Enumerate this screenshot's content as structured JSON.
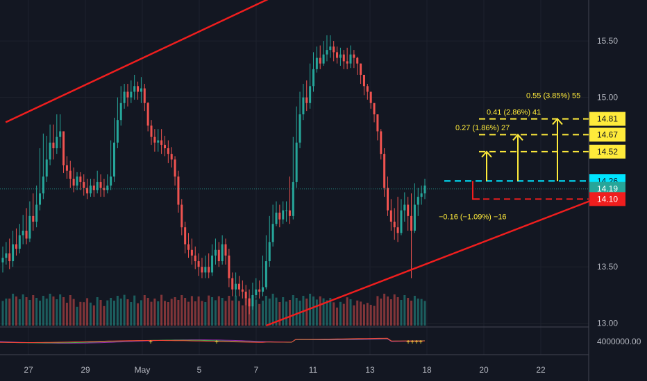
{
  "chart_data": {
    "type": "candlestick",
    "price_axis": {
      "range": [
        12.98,
        15.85
      ],
      "ticks": [
        "15.50",
        "15.00",
        "13.50",
        "13.00"
      ]
    },
    "time_axis": {
      "ticks": [
        {
          "label": "27",
          "day": 0
        },
        {
          "label": "29",
          "day": 2
        },
        {
          "label": "May",
          "day": 4
        },
        {
          "label": "5",
          "day": 6
        },
        {
          "label": "7",
          "day": 8
        },
        {
          "label": "11",
          "day": 10
        },
        {
          "label": "13",
          "day": 12
        },
        {
          "label": "18",
          "day": 14
        },
        {
          "label": "20",
          "day": 16
        },
        {
          "label": "22",
          "day": 18
        }
      ]
    },
    "candle_closes": [
      13.58,
      13.62,
      13.55,
      13.7,
      13.66,
      13.78,
      13.82,
      13.75,
      13.95,
      13.9,
      14.05,
      14.15,
      14.3,
      14.45,
      14.6,
      14.55,
      14.65,
      14.7,
      14.4,
      14.35,
      14.28,
      14.22,
      14.3,
      14.25,
      14.2,
      14.15,
      14.22,
      14.18,
      14.25,
      14.2,
      14.18,
      14.22,
      14.3,
      14.6,
      14.8,
      14.95,
      15.05,
      15.0,
      15.05,
      15.1,
      15.05,
      15.08,
      14.95,
      14.75,
      14.65,
      14.6,
      14.62,
      14.58,
      14.55,
      14.5,
      14.45,
      14.3,
      14.05,
      13.85,
      13.7,
      13.65,
      13.6,
      13.55,
      13.5,
      13.45,
      13.5,
      13.45,
      13.6,
      13.65,
      13.55,
      13.7,
      13.6,
      13.4,
      13.3,
      13.35,
      13.3,
      13.28,
      13.22,
      13.15,
      13.25,
      13.3,
      13.28,
      13.32,
      13.55,
      13.72,
      13.88,
      13.98,
      13.92,
      14.0,
      14.0,
      13.95,
      14.25,
      14.6,
      14.85,
      15.0,
      14.95,
      15.1,
      15.25,
      15.35,
      15.3,
      15.38,
      15.42,
      15.45,
      15.4,
      15.35,
      15.38,
      15.32,
      15.3,
      15.38,
      15.35,
      15.3,
      15.2,
      15.1,
      15.05,
      14.95,
      14.85,
      14.7,
      14.5,
      14.2,
      14.0,
      13.9,
      13.85,
      13.8,
      14.0,
      14.05,
      13.95,
      13.82,
      14.05,
      14.12,
      14.15,
      14.22
    ],
    "candle_highs": [
      13.68,
      13.72,
      13.75,
      13.82,
      13.84,
      13.88,
      13.96,
      14.02,
      14.08,
      14.15,
      14.22,
      14.55,
      14.68,
      14.66,
      14.76,
      14.76,
      14.85,
      14.85,
      14.7,
      14.48,
      14.44,
      14.38,
      14.34,
      14.34,
      14.32,
      14.28,
      14.28,
      14.28,
      14.35,
      14.32,
      14.28,
      14.32,
      14.62,
      14.82,
      15.0,
      15.1,
      15.12,
      15.12,
      15.15,
      15.2,
      15.14,
      15.18,
      15.12,
      14.96,
      14.8,
      14.72,
      14.72,
      14.72,
      14.66,
      14.62,
      14.56,
      14.48,
      14.35,
      14.1,
      13.9,
      13.8,
      13.75,
      13.68,
      13.62,
      13.58,
      13.6,
      13.62,
      13.7,
      13.75,
      13.72,
      13.78,
      13.75,
      13.66,
      13.45,
      13.45,
      13.42,
      13.38,
      13.34,
      13.3,
      13.36,
      13.4,
      13.38,
      13.6,
      13.78,
      13.95,
      14.05,
      14.08,
      14.05,
      14.08,
      14.08,
      14.3,
      14.65,
      14.92,
      15.05,
      15.12,
      15.15,
      15.3,
      15.4,
      15.45,
      15.46,
      15.5,
      15.55,
      15.55,
      15.5,
      15.45,
      15.44,
      15.42,
      15.44,
      15.46,
      15.42,
      15.36,
      15.3,
      15.2,
      15.12,
      15.05,
      14.95,
      14.85,
      14.72,
      14.55,
      14.3,
      14.1,
      14.02,
      14.12,
      14.1,
      14.16,
      14.12,
      14.15,
      14.24,
      14.2,
      14.22,
      14.28
    ],
    "candle_lows": [
      13.45,
      13.52,
      13.48,
      13.5,
      13.6,
      13.62,
      13.7,
      13.7,
      13.72,
      13.82,
      13.85,
      14.0,
      14.1,
      14.25,
      14.4,
      14.45,
      14.5,
      14.55,
      14.33,
      14.28,
      14.2,
      14.16,
      14.18,
      14.18,
      14.13,
      14.1,
      14.12,
      14.12,
      14.15,
      14.12,
      14.12,
      14.15,
      14.18,
      14.25,
      14.55,
      14.75,
      14.9,
      14.92,
      14.95,
      14.98,
      14.98,
      14.95,
      14.88,
      14.7,
      14.58,
      14.52,
      14.52,
      14.5,
      14.48,
      14.42,
      14.38,
      14.22,
      13.98,
      13.78,
      13.62,
      13.58,
      13.52,
      13.48,
      13.42,
      13.4,
      13.4,
      13.4,
      13.42,
      13.52,
      13.5,
      13.52,
      13.52,
      13.32,
      13.24,
      13.24,
      13.24,
      13.22,
      13.16,
      13.08,
      13.12,
      13.22,
      13.22,
      13.24,
      13.3,
      13.5,
      13.68,
      13.86,
      13.85,
      13.88,
      13.9,
      13.88,
      13.92,
      14.2,
      14.55,
      14.8,
      14.88,
      14.9,
      15.05,
      15.22,
      15.25,
      15.28,
      15.32,
      15.35,
      15.32,
      15.3,
      15.28,
      15.25,
      15.25,
      15.26,
      15.26,
      15.2,
      15.12,
      15.02,
      14.98,
      14.9,
      14.78,
      14.62,
      14.45,
      14.12,
      13.95,
      13.82,
      13.74,
      13.72,
      13.78,
      13.9,
      13.82,
      13.4,
      13.8,
      13.95,
      14.05,
      14.1
    ],
    "horizontal_levels": [
      {
        "label": "14.81",
        "price": 14.81,
        "color": "#ffeb3b",
        "style": "dashed",
        "text_color": "#131722"
      },
      {
        "label": "14.67",
        "price": 14.67,
        "color": "#ffeb3b",
        "style": "dashed",
        "text_color": "#131722"
      },
      {
        "label": "14.52",
        "price": 14.52,
        "color": "#ffeb3b",
        "style": "dashed",
        "text_color": "#131722"
      },
      {
        "label": "14.26",
        "price": 14.26,
        "color": "#00e5ff",
        "style": "dashed",
        "text_color": "#131722"
      },
      {
        "label": "14.19",
        "price": 14.19,
        "color": "#26a69a",
        "style": "dotted",
        "text_color": "#ffffff"
      },
      {
        "label": "14.10",
        "price": 14.1,
        "color": "#f01e1e",
        "style": "dashed",
        "text_color": "#ffffff"
      }
    ],
    "targets": [
      {
        "label": "0.27 (1.86%) 27",
        "price": 14.52
      },
      {
        "label": "0.41 (2.86%) 41",
        "price": 14.67
      },
      {
        "label": "0.55 (3.85%) 55",
        "price": 14.81
      }
    ],
    "stop": {
      "label": "−0.16 (−1.09%) −16",
      "price": 14.1
    },
    "trend_lines": [
      {
        "from": {
          "day": -0.8,
          "price": 14.78
        },
        "to": {
          "day": 9.1,
          "price": 15.95
        }
      },
      {
        "from": {
          "day": 8.35,
          "price": 12.98
        },
        "to": {
          "day": 19.9,
          "price": 14.1
        }
      }
    ],
    "indicator": {
      "label": "4000000.00"
    },
    "colors": {
      "up": "#26a69a",
      "down": "#ef5350",
      "trend": "#f01e1e",
      "target": "#ffeb3b",
      "entry": "#00e5ff",
      "background": "#131722"
    }
  }
}
